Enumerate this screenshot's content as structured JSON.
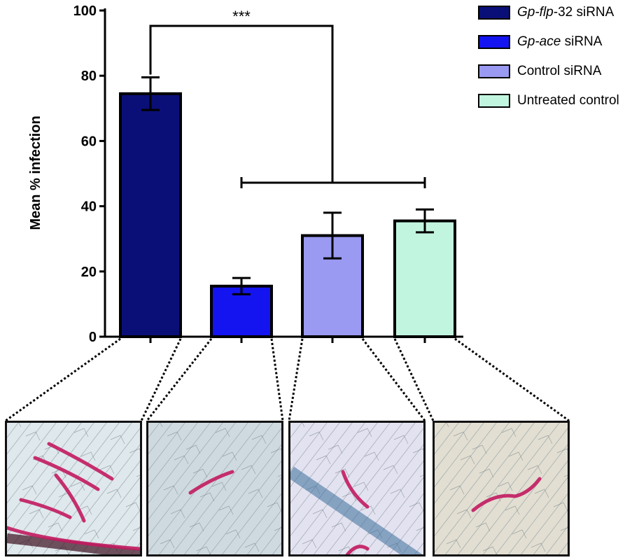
{
  "chart_data": {
    "type": "bar",
    "ylabel": "Mean % infection",
    "ylim": [
      0,
      100
    ],
    "yticks": [
      0,
      20,
      40,
      60,
      80,
      100
    ],
    "categories": [
      "Gp-flp-32 siRNA",
      "Gp-ace siRNA",
      "Control siRNA",
      "Untreated control"
    ],
    "values": [
      74.5,
      15.5,
      31,
      35.5
    ],
    "errors": [
      5,
      2.5,
      7,
      3.5
    ],
    "colors": [
      "#0a0f78",
      "#1414f0",
      "#9a9af2",
      "#c2f5e0"
    ],
    "significance": {
      "label": "***",
      "from": 0,
      "to_group": [
        1,
        3
      ]
    },
    "legend": {
      "position": "top-right",
      "items": [
        {
          "italic": "Gp-flp",
          "rest": "-32 siRNA"
        },
        {
          "italic": "Gp-ace",
          "rest": " siRNA"
        },
        {
          "italic": "",
          "rest": "Control siRNA"
        },
        {
          "italic": "",
          "rest": "Untreated control"
        }
      ]
    }
  },
  "micrographs": [
    {
      "name": "micrograph-gp-flp-32",
      "tint": "#dfe8ec"
    },
    {
      "name": "micrograph-gp-ace",
      "tint": "#cfdae0"
    },
    {
      "name": "micrograph-control",
      "tint": "#e3e2f0"
    },
    {
      "name": "micrograph-untreated",
      "tint": "#e2ded2"
    }
  ]
}
